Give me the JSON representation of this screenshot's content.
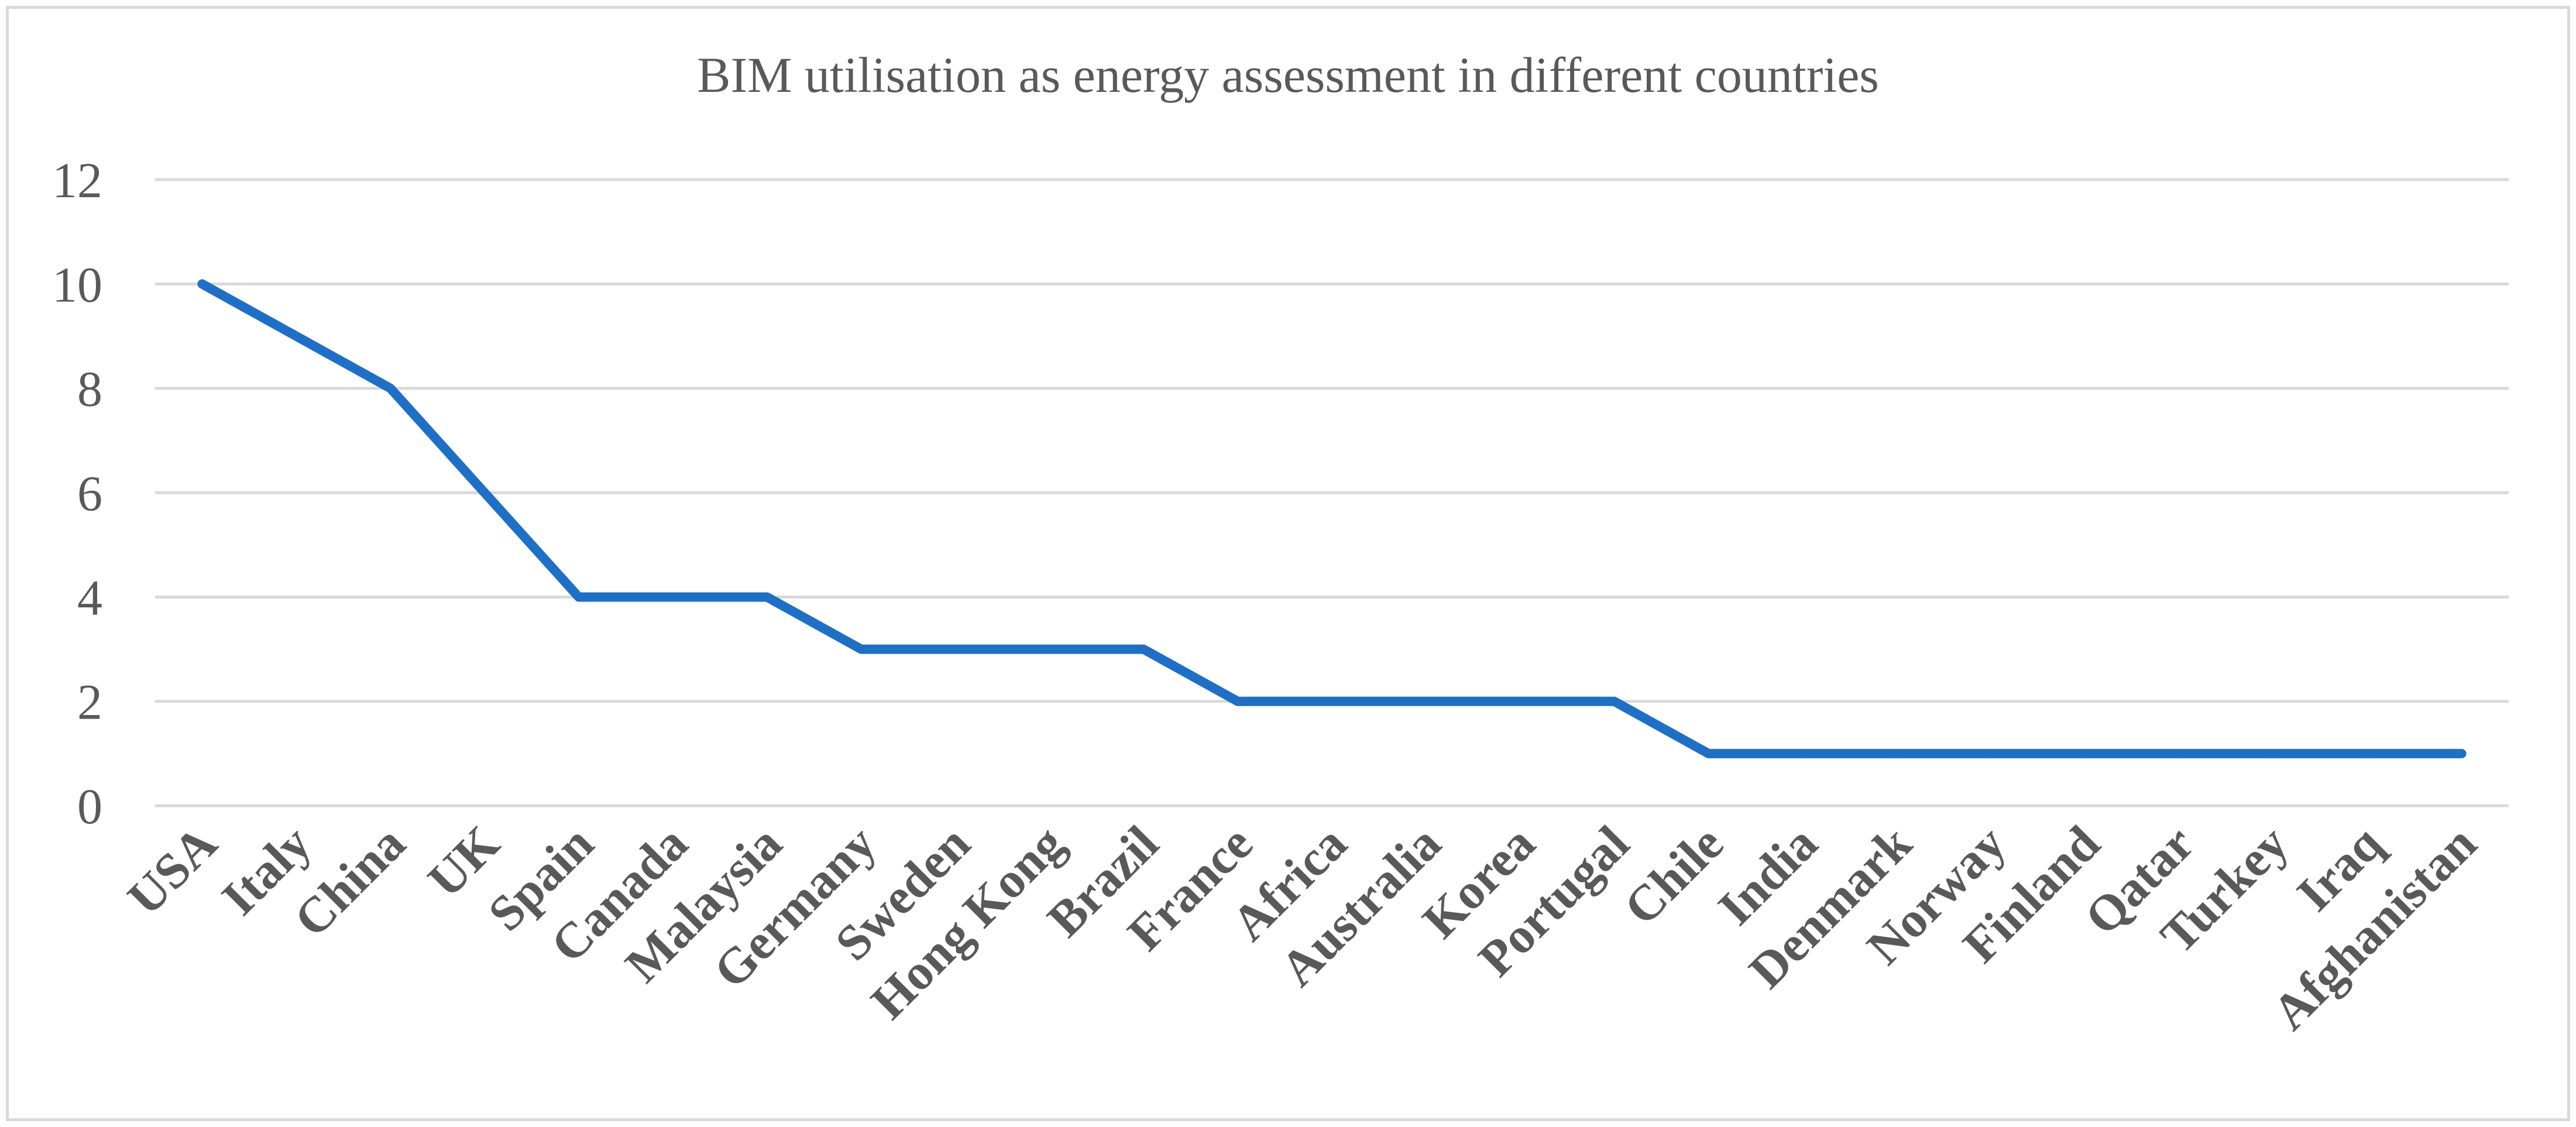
{
  "chart_data": {
    "type": "line",
    "title": "BIM utilisation as energy assessment in different countries",
    "xlabel": "",
    "ylabel": "",
    "ylim": [
      0,
      12
    ],
    "yticks": [
      0,
      2,
      4,
      6,
      8,
      10,
      12
    ],
    "grid": true,
    "legend": "none",
    "categories": [
      "USA",
      "Italy",
      "China",
      "UK",
      "Spain",
      "Canada",
      "Malaysia",
      "Germany",
      "Sweden",
      "Hong Kong",
      "Brazil",
      "France",
      "Africa",
      "Australia",
      "Korea",
      "Portugal",
      "Chile",
      "India",
      "Denmark",
      "Norway",
      "Finland",
      "Qatar",
      "Turkey",
      "Iraq",
      "Afghanistan"
    ],
    "series": [
      {
        "name": "BIM utilisation",
        "color": "#1f6fc5",
        "values": [
          10,
          9,
          8,
          6,
          4,
          4,
          4,
          3,
          3,
          3,
          3,
          2,
          2,
          2,
          2,
          2,
          1,
          1,
          1,
          1,
          1,
          1,
          1,
          1,
          1
        ]
      }
    ]
  }
}
